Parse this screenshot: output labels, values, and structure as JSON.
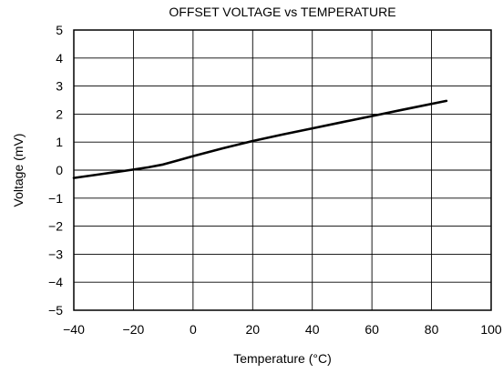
{
  "chart_data": {
    "type": "line",
    "title": "OFFSET VOLTAGE vs TEMPERATURE",
    "xlabel": "Temperature (°C)",
    "ylabel": "Voltage (mV)",
    "xlim": [
      -40,
      100
    ],
    "ylim": [
      -5,
      5
    ],
    "x_ticks": [
      -40,
      -20,
      0,
      20,
      40,
      60,
      80,
      100
    ],
    "y_ticks": [
      5,
      4,
      3,
      2,
      1,
      0,
      -1,
      -2,
      -3,
      -4,
      -5
    ],
    "x_tick_labels": [
      "−40",
      "−20",
      "0",
      "20",
      "40",
      "60",
      "80",
      "100"
    ],
    "y_tick_labels": [
      "5",
      "4",
      "3",
      "2",
      "1",
      "0",
      "−1",
      "−2",
      "−3",
      "−4",
      "−5"
    ],
    "grid": true,
    "line_color": "#000000",
    "series": [
      {
        "x": [
          -40,
          -30,
          -20,
          -15,
          -10,
          -5,
          0,
          10,
          20,
          30,
          40,
          50,
          60,
          70,
          85
        ],
        "y": [
          -0.28,
          -0.13,
          0.02,
          0.1,
          0.2,
          0.35,
          0.5,
          0.78,
          1.04,
          1.27,
          1.49,
          1.71,
          1.93,
          2.15,
          2.47
        ]
      }
    ]
  }
}
